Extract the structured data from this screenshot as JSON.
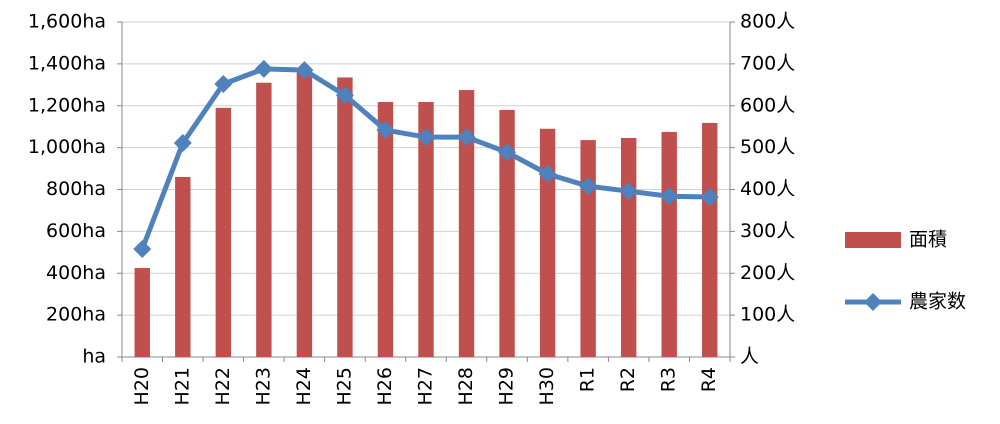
{
  "chart_data": {
    "type": "bar-line",
    "categories": [
      "H20",
      "H21",
      "H22",
      "H23",
      "H24",
      "H25",
      "H26",
      "H27",
      "H28",
      "H29",
      "H30",
      "R1",
      "R2",
      "R3",
      "R4"
    ],
    "series": [
      {
        "name": "面積",
        "type": "bar",
        "color": "#c0504d",
        "axis": "y",
        "values": [
          425,
          860,
          1190,
          1310,
          1370,
          1335,
          1218,
          1218,
          1275,
          1180,
          1090,
          1036,
          1046,
          1075,
          1118
        ]
      },
      {
        "name": "農家数",
        "type": "line",
        "color": "#4f81bd",
        "axis": "y2",
        "values": [
          258,
          511,
          652,
          688,
          685,
          625,
          542,
          525,
          525,
          489,
          437,
          408,
          396,
          384,
          382
        ]
      }
    ],
    "ylim": [
      0,
      1600
    ],
    "yticks": [
      {
        "value": 0,
        "label": "ha"
      },
      {
        "value": 200,
        "label": "200ha"
      },
      {
        "value": 400,
        "label": "400ha"
      },
      {
        "value": 600,
        "label": "600ha"
      },
      {
        "value": 800,
        "label": "800ha"
      },
      {
        "value": 1000,
        "label": "1,000ha"
      },
      {
        "value": 1200,
        "label": "1,200ha"
      },
      {
        "value": 1400,
        "label": "1,400ha"
      },
      {
        "value": 1600,
        "label": "1,600ha"
      }
    ],
    "y2lim": [
      0,
      800
    ],
    "y2ticks": [
      {
        "value": 0,
        "label": "人"
      },
      {
        "value": 100,
        "label": "100人"
      },
      {
        "value": 200,
        "label": "200人"
      },
      {
        "value": 300,
        "label": "300人"
      },
      {
        "value": 400,
        "label": "400人"
      },
      {
        "value": 500,
        "label": "500人"
      },
      {
        "value": 600,
        "label": "600人"
      },
      {
        "value": 700,
        "label": "700人"
      },
      {
        "value": 800,
        "label": "800人"
      }
    ],
    "grid": true,
    "legend": "right"
  }
}
